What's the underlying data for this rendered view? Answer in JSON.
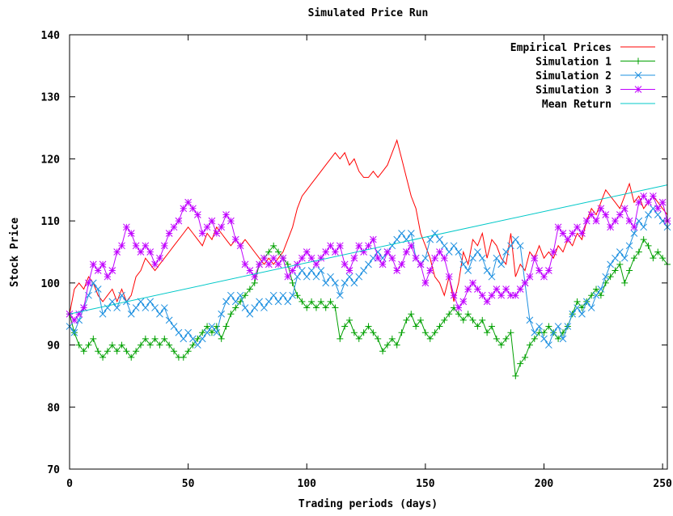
{
  "chart_data": {
    "type": "line",
    "title": "Simulated Price Run",
    "xlabel": "Trading periods (days)",
    "ylabel": "Stock Price",
    "xlim": [
      0,
      252
    ],
    "ylim": [
      70,
      140
    ],
    "xticks": [
      0,
      50,
      100,
      150,
      200,
      250
    ],
    "yticks": [
      70,
      80,
      90,
      100,
      110,
      120,
      130,
      140
    ],
    "legend_position": "top-right",
    "grid": false,
    "series": [
      {
        "name": "Empirical Prices",
        "color": "#ff0000",
        "marker": "none",
        "x": [
          0,
          2,
          4,
          6,
          8,
          10,
          12,
          14,
          16,
          18,
          20,
          22,
          24,
          26,
          28,
          30,
          32,
          34,
          36,
          38,
          40,
          42,
          44,
          46,
          48,
          50,
          52,
          54,
          56,
          58,
          60,
          62,
          64,
          66,
          68,
          70,
          72,
          74,
          76,
          78,
          80,
          82,
          84,
          86,
          88,
          90,
          92,
          94,
          96,
          98,
          100,
          102,
          104,
          106,
          108,
          110,
          112,
          114,
          116,
          118,
          120,
          122,
          124,
          126,
          128,
          130,
          132,
          134,
          136,
          138,
          140,
          142,
          144,
          146,
          148,
          150,
          152,
          154,
          156,
          158,
          160,
          162,
          164,
          166,
          168,
          170,
          172,
          174,
          176,
          178,
          180,
          182,
          184,
          186,
          188,
          190,
          192,
          194,
          196,
          198,
          200,
          202,
          204,
          206,
          208,
          210,
          212,
          214,
          216,
          218,
          220,
          222,
          224,
          226,
          228,
          230,
          232,
          234,
          236,
          238,
          240,
          242,
          244,
          246,
          248,
          250,
          252
        ],
        "y": [
          95,
          99,
          100,
          99,
          101,
          100,
          98,
          97,
          98,
          99,
          97,
          99,
          97,
          98,
          101,
          102,
          104,
          103,
          102,
          103,
          104,
          105,
          106,
          107,
          108,
          109,
          108,
          107,
          106,
          108,
          107,
          109,
          108,
          107,
          106,
          107,
          106,
          107,
          106,
          105,
          104,
          103,
          104,
          103,
          104,
          105,
          107,
          109,
          112,
          114,
          115,
          116,
          117,
          118,
          119,
          120,
          121,
          120,
          121,
          119,
          120,
          118,
          117,
          117,
          118,
          117,
          118,
          119,
          121,
          123,
          120,
          117,
          114,
          112,
          108,
          106,
          104,
          101,
          100,
          98,
          101,
          97,
          100,
          105,
          103,
          107,
          106,
          108,
          104,
          107,
          106,
          104,
          103,
          108,
          101,
          103,
          102,
          105,
          104,
          106,
          104,
          105,
          104,
          106,
          105,
          107,
          106,
          108,
          107,
          110,
          112,
          111,
          113,
          115,
          114,
          113,
          112,
          114,
          116,
          113,
          114,
          112,
          113,
          114,
          113,
          112,
          111
        ]
      },
      {
        "name": "Simulation 1",
        "color": "#00a000",
        "marker": "plus",
        "x": [
          0,
          2,
          4,
          6,
          8,
          10,
          12,
          14,
          16,
          18,
          20,
          22,
          24,
          26,
          28,
          30,
          32,
          34,
          36,
          38,
          40,
          42,
          44,
          46,
          48,
          50,
          52,
          54,
          56,
          58,
          60,
          62,
          64,
          66,
          68,
          70,
          72,
          74,
          76,
          78,
          80,
          82,
          84,
          86,
          88,
          90,
          92,
          94,
          96,
          98,
          100,
          102,
          104,
          106,
          108,
          110,
          112,
          114,
          116,
          118,
          120,
          122,
          124,
          126,
          128,
          130,
          132,
          134,
          136,
          138,
          140,
          142,
          144,
          146,
          148,
          150,
          152,
          154,
          156,
          158,
          160,
          162,
          164,
          166,
          168,
          170,
          172,
          174,
          176,
          178,
          180,
          182,
          184,
          186,
          188,
          190,
          192,
          194,
          196,
          198,
          200,
          202,
          204,
          206,
          208,
          210,
          212,
          214,
          216,
          218,
          220,
          222,
          224,
          226,
          228,
          230,
          232,
          234,
          236,
          238,
          240,
          242,
          244,
          246,
          248,
          250,
          252
        ],
        "y": [
          95,
          92,
          90,
          89,
          90,
          91,
          89,
          88,
          89,
          90,
          89,
          90,
          89,
          88,
          89,
          90,
          91,
          90,
          91,
          90,
          91,
          90,
          89,
          88,
          88,
          89,
          90,
          91,
          92,
          93,
          92,
          93,
          91,
          93,
          95,
          96,
          97,
          98,
          99,
          100,
          103,
          104,
          105,
          106,
          105,
          104,
          103,
          100,
          98,
          97,
          96,
          97,
          96,
          97,
          96,
          97,
          96,
          91,
          93,
          94,
          92,
          91,
          92,
          93,
          92,
          91,
          89,
          90,
          91,
          90,
          92,
          94,
          95,
          93,
          94,
          92,
          91,
          92,
          93,
          94,
          95,
          96,
          95,
          94,
          95,
          94,
          93,
          94,
          92,
          93,
          91,
          90,
          91,
          92,
          85,
          87,
          88,
          90,
          91,
          92,
          92,
          93,
          92,
          91,
          92,
          93,
          95,
          97,
          96,
          97,
          98,
          99,
          98,
          100,
          101,
          102,
          103,
          100,
          102,
          104,
          105,
          107,
          106,
          104,
          105,
          104,
          103
        ]
      },
      {
        "name": "Simulation 2",
        "color": "#1e90e0",
        "marker": "cross",
        "x": [
          0,
          2,
          4,
          6,
          8,
          10,
          12,
          14,
          16,
          18,
          20,
          22,
          24,
          26,
          28,
          30,
          32,
          34,
          36,
          38,
          40,
          42,
          44,
          46,
          48,
          50,
          52,
          54,
          56,
          58,
          60,
          62,
          64,
          66,
          68,
          70,
          72,
          74,
          76,
          78,
          80,
          82,
          84,
          86,
          88,
          90,
          92,
          94,
          96,
          98,
          100,
          102,
          104,
          106,
          108,
          110,
          112,
          114,
          116,
          118,
          120,
          122,
          124,
          126,
          128,
          130,
          132,
          134,
          136,
          138,
          140,
          142,
          144,
          146,
          148,
          150,
          152,
          154,
          156,
          158,
          160,
          162,
          164,
          166,
          168,
          170,
          172,
          174,
          176,
          178,
          180,
          182,
          184,
          186,
          188,
          190,
          192,
          194,
          196,
          198,
          200,
          202,
          204,
          206,
          208,
          210,
          212,
          214,
          216,
          218,
          220,
          222,
          224,
          226,
          228,
          230,
          232,
          234,
          236,
          238,
          240,
          242,
          244,
          246,
          248,
          250,
          252
        ],
        "y": [
          93,
          92,
          94,
          96,
          98,
          100,
          99,
          95,
          96,
          97,
          96,
          98,
          97,
          95,
          96,
          97,
          96,
          97,
          96,
          95,
          96,
          94,
          93,
          92,
          91,
          92,
          91,
          90,
          91,
          92,
          93,
          92,
          95,
          97,
          98,
          97,
          98,
          96,
          95,
          96,
          97,
          96,
          97,
          98,
          97,
          98,
          97,
          98,
          101,
          102,
          101,
          102,
          101,
          102,
          100,
          101,
          100,
          98,
          100,
          101,
          100,
          101,
          102,
          103,
          104,
          105,
          104,
          105,
          106,
          107,
          108,
          107,
          108,
          104,
          103,
          104,
          107,
          108,
          107,
          106,
          105,
          106,
          105,
          103,
          102,
          104,
          105,
          104,
          102,
          101,
          104,
          103,
          105,
          106,
          107,
          106,
          100,
          94,
          92,
          93,
          91,
          90,
          92,
          93,
          91,
          93,
          95,
          96,
          95,
          97,
          96,
          98,
          99,
          101,
          103,
          104,
          105,
          104,
          106,
          108,
          110,
          109,
          111,
          112,
          111,
          110,
          109
        ]
      },
      {
        "name": "Simulation 3",
        "color": "#c000ff",
        "marker": "star",
        "x": [
          0,
          2,
          4,
          6,
          8,
          10,
          12,
          14,
          16,
          18,
          20,
          22,
          24,
          26,
          28,
          30,
          32,
          34,
          36,
          38,
          40,
          42,
          44,
          46,
          48,
          50,
          52,
          54,
          56,
          58,
          60,
          62,
          64,
          66,
          68,
          70,
          72,
          74,
          76,
          78,
          80,
          82,
          84,
          86,
          88,
          90,
          92,
          94,
          96,
          98,
          100,
          102,
          104,
          106,
          108,
          110,
          112,
          114,
          116,
          118,
          120,
          122,
          124,
          126,
          128,
          130,
          132,
          134,
          136,
          138,
          140,
          142,
          144,
          146,
          148,
          150,
          152,
          154,
          156,
          158,
          160,
          162,
          164,
          166,
          168,
          170,
          172,
          174,
          176,
          178,
          180,
          182,
          184,
          186,
          188,
          190,
          192,
          194,
          196,
          198,
          200,
          202,
          204,
          206,
          208,
          210,
          212,
          214,
          216,
          218,
          220,
          222,
          224,
          226,
          228,
          230,
          232,
          234,
          236,
          238,
          240,
          242,
          244,
          246,
          248,
          250,
          252
        ],
        "y": [
          95,
          94,
          95,
          96,
          100,
          103,
          102,
          103,
          101,
          102,
          105,
          106,
          109,
          108,
          106,
          105,
          106,
          105,
          103,
          104,
          106,
          108,
          109,
          110,
          112,
          113,
          112,
          111,
          108,
          109,
          110,
          108,
          109,
          111,
          110,
          107,
          106,
          103,
          102,
          101,
          103,
          104,
          103,
          104,
          103,
          104,
          101,
          102,
          103,
          104,
          105,
          104,
          103,
          104,
          105,
          106,
          105,
          106,
          103,
          102,
          104,
          106,
          105,
          106,
          107,
          104,
          103,
          105,
          104,
          102,
          103,
          105,
          106,
          104,
          103,
          100,
          102,
          104,
          105,
          104,
          101,
          98,
          96,
          97,
          99,
          100,
          99,
          98,
          97,
          98,
          99,
          98,
          99,
          98,
          98,
          99,
          100,
          101,
          104,
          102,
          101,
          102,
          105,
          109,
          108,
          107,
          108,
          109,
          108,
          110,
          111,
          110,
          112,
          111,
          109,
          110,
          111,
          112,
          110,
          109,
          113,
          114,
          113,
          114,
          112,
          113,
          110
        ]
      },
      {
        "name": "Mean Return",
        "color": "#00c8c8",
        "marker": "none",
        "x": [
          0,
          252
        ],
        "y": [
          95,
          115.8
        ]
      }
    ]
  }
}
